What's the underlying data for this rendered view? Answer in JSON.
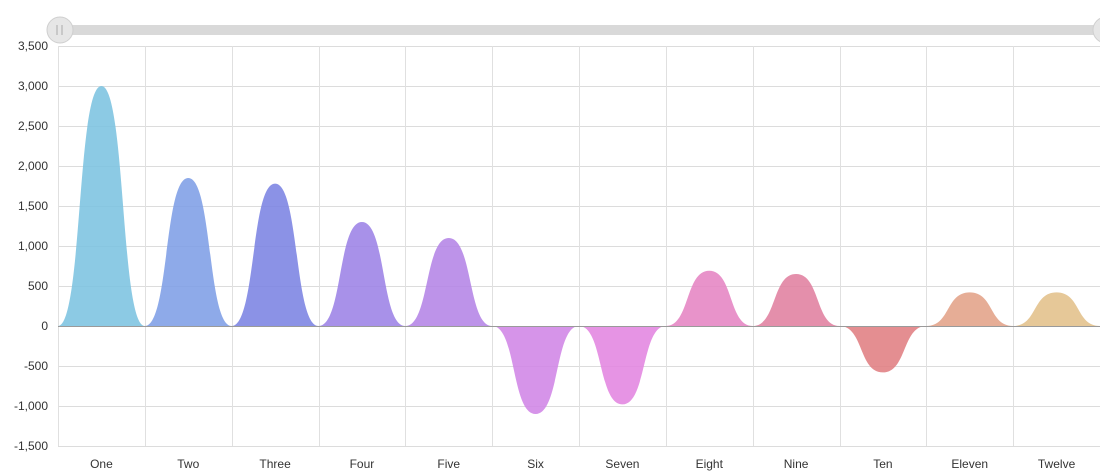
{
  "scrollbar": {
    "track_color": "#d9d9d9",
    "thumb_color": "#e6e6e6"
  },
  "chart_data": {
    "type": "area",
    "categories": [
      "One",
      "Two",
      "Three",
      "Four",
      "Five",
      "Six",
      "Seven",
      "Eight",
      "Nine",
      "Ten",
      "Eleven",
      "Twelve"
    ],
    "values": [
      3000,
      1850,
      1780,
      1300,
      1100,
      -1100,
      -980,
      690,
      650,
      -580,
      420,
      420
    ],
    "colors": [
      "#7cc3e0",
      "#7e9ee6",
      "#7b83e3",
      "#9c82e6",
      "#b484e6",
      "#d085e6",
      "#e285e0",
      "#e584c3",
      "#e0809f",
      "#e07e82",
      "#e3a287",
      "#e2c08a"
    ],
    "ylim": [
      -1500,
      3500
    ],
    "yticks": [
      -1500,
      -1000,
      -500,
      0,
      500,
      1000,
      1500,
      2000,
      2500,
      3000,
      3500
    ],
    "ytick_labels": [
      "-1,500",
      "-1,000",
      "-500",
      "0",
      "500",
      "1,000",
      "1,500",
      "2,000",
      "2,500",
      "3,000",
      "3,500"
    ],
    "grid": true,
    "title": "",
    "xlabel": "",
    "ylabel": ""
  }
}
